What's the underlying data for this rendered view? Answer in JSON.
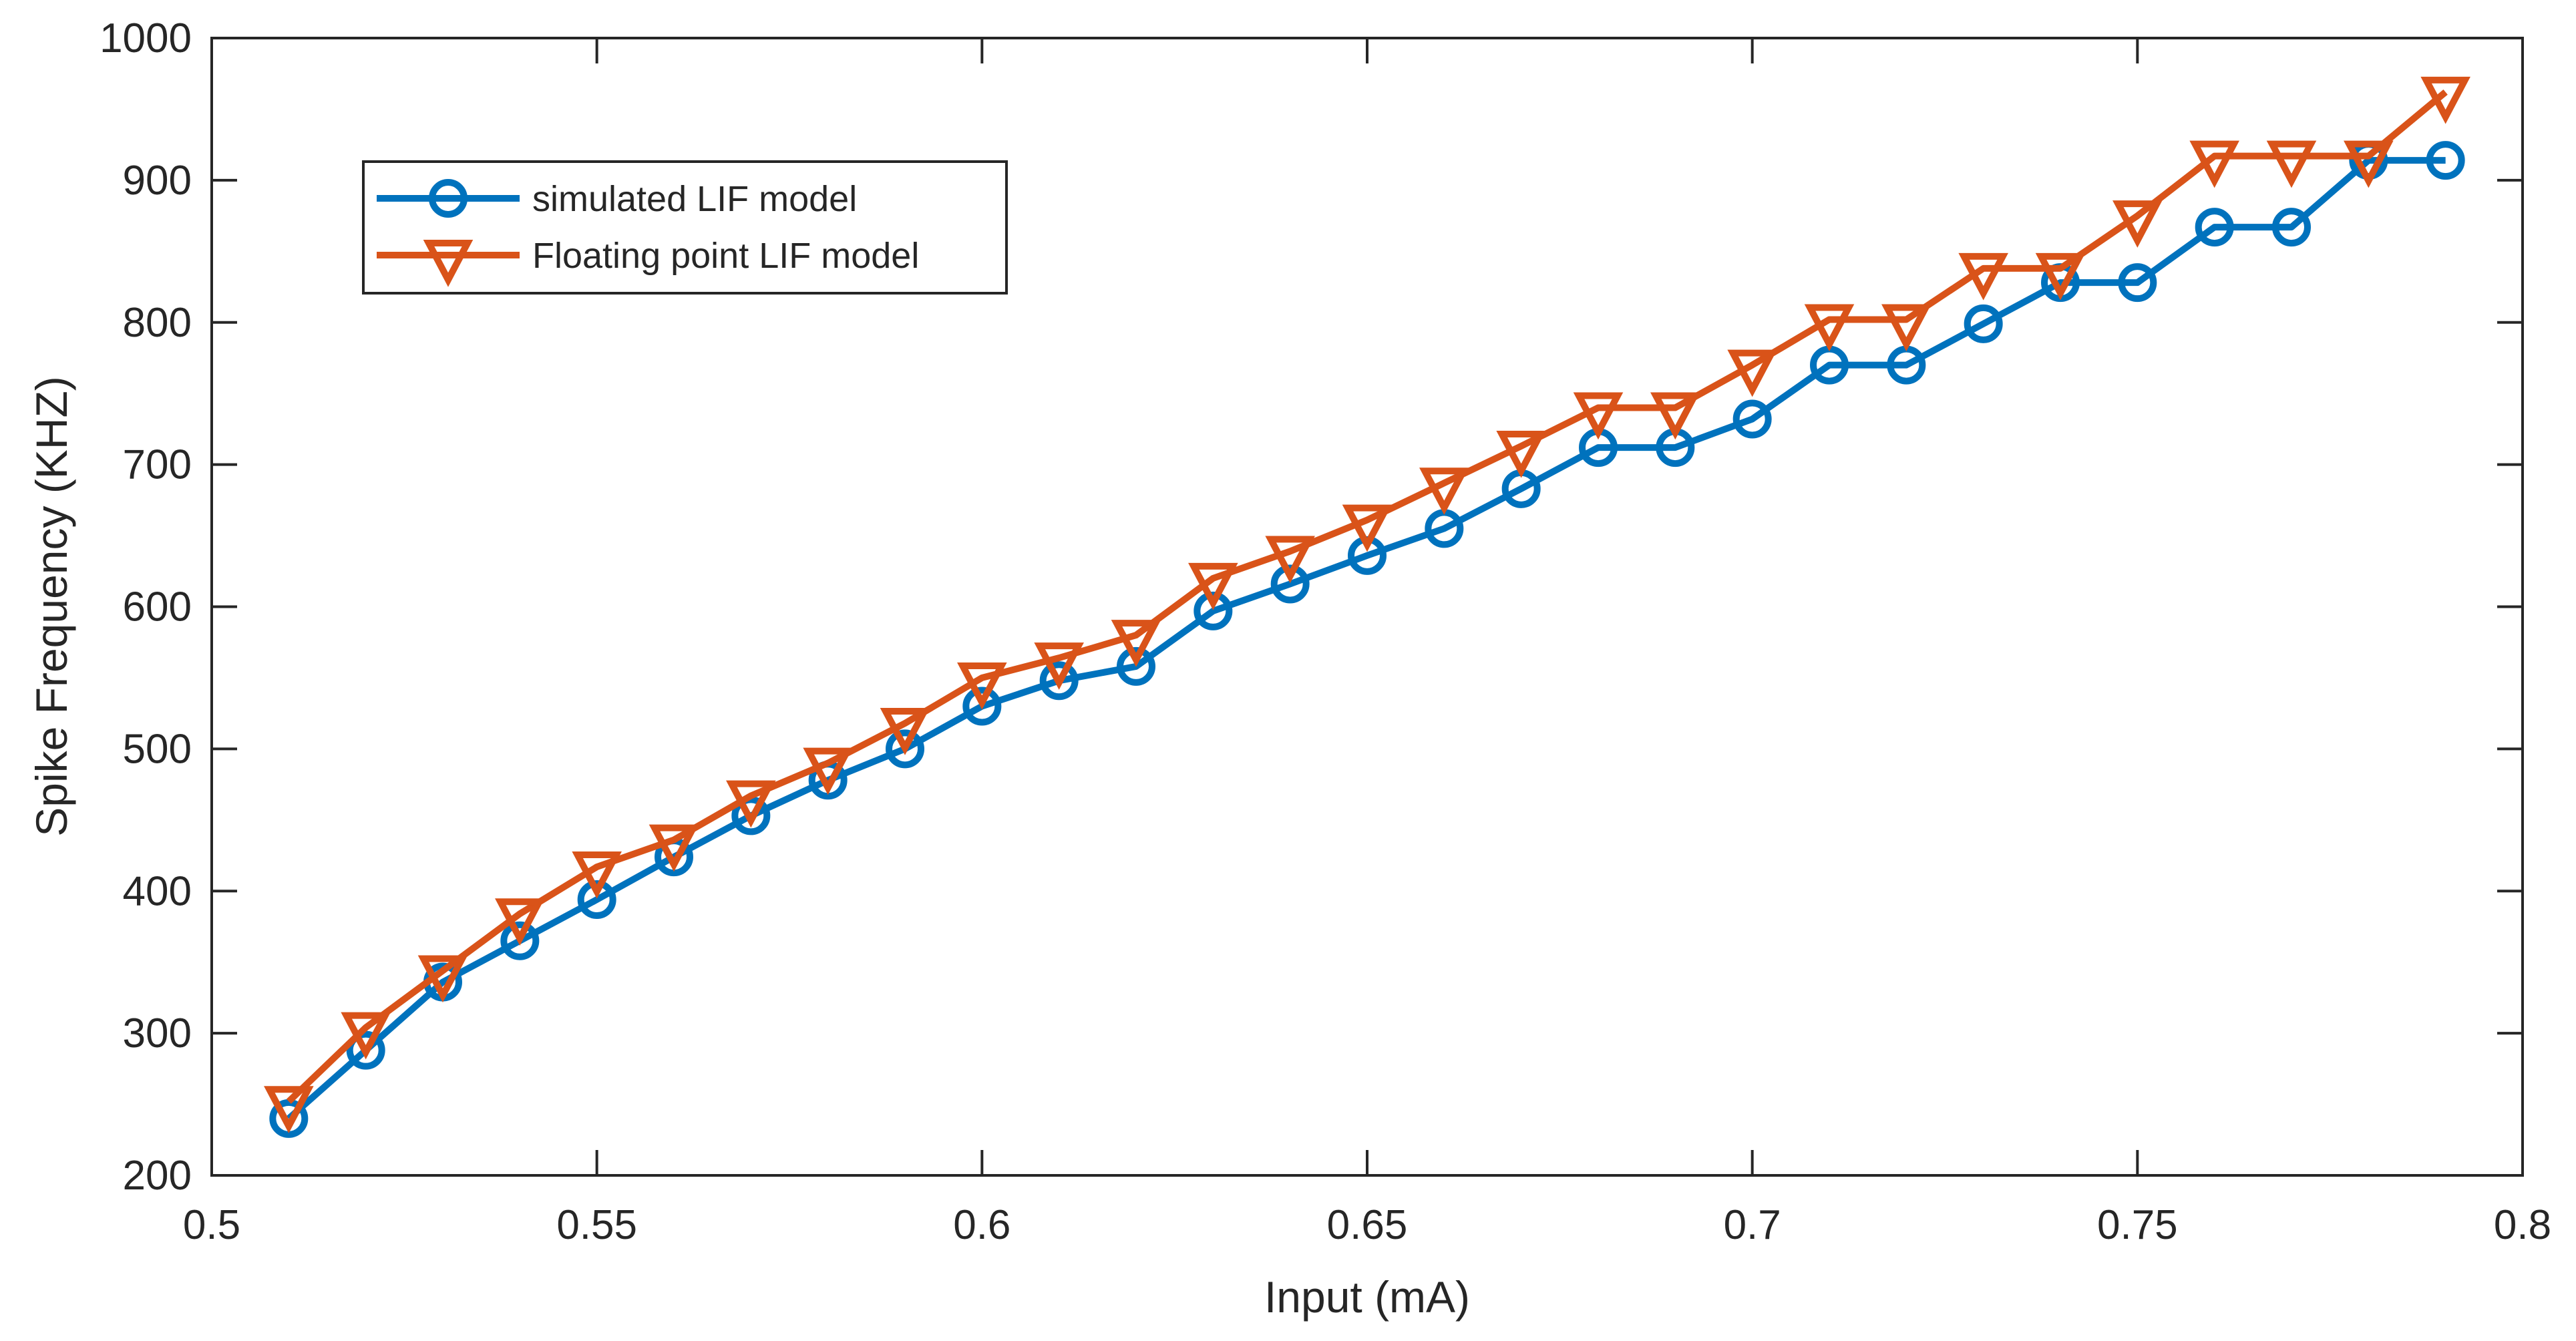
{
  "colors": {
    "axes": "#262626",
    "background": "#ffffff",
    "series_blue": "#0072BD",
    "series_orange": "#D95319"
  },
  "chart_data": {
    "type": "line",
    "title": "",
    "xlabel": "Input (mA)",
    "ylabel": "Spike Frequency (KHZ)",
    "xlim": [
      0.5,
      0.8
    ],
    "ylim": [
      200,
      1000
    ],
    "grid": false,
    "legend_position": "upper-left-inside",
    "x_ticks": [
      0.5,
      0.55,
      0.6,
      0.65,
      0.7,
      0.75,
      0.8
    ],
    "x_tick_labels": [
      "0.5",
      "0.55",
      "0.6",
      "0.65",
      "0.7",
      "0.75",
      "0.8"
    ],
    "y_ticks": [
      200,
      300,
      400,
      500,
      600,
      700,
      800,
      900,
      1000
    ],
    "y_tick_labels": [
      "200",
      "300",
      "400",
      "500",
      "600",
      "700",
      "800",
      "900",
      "1000"
    ],
    "x": [
      0.51,
      0.52,
      0.53,
      0.54,
      0.55,
      0.56,
      0.57,
      0.58,
      0.59,
      0.6,
      0.61,
      0.62,
      0.63,
      0.64,
      0.65,
      0.66,
      0.67,
      0.68,
      0.69,
      0.7,
      0.71,
      0.72,
      0.73,
      0.74,
      0.75,
      0.76,
      0.77,
      0.78,
      0.79
    ],
    "series": [
      {
        "name": "simulated LIF model",
        "color": "#0072BD",
        "marker": "circle",
        "values": [
          240,
          288,
          336,
          365,
          394,
          424,
          453,
          478,
          500,
          530,
          548,
          558,
          597,
          616,
          636,
          655,
          683,
          712,
          712,
          732,
          770,
          770,
          799,
          828,
          828,
          867,
          867,
          914,
          914
        ]
      },
      {
        "name": "Floating point LIF model",
        "color": "#D95319",
        "marker": "triangle-down",
        "values": [
          252,
          304,
          344,
          384,
          417,
          436,
          467,
          490,
          518,
          550,
          564,
          580,
          620,
          639,
          661,
          687,
          713,
          740,
          740,
          770,
          802,
          802,
          838,
          838,
          875,
          917,
          917,
          917,
          962
        ]
      }
    ]
  }
}
